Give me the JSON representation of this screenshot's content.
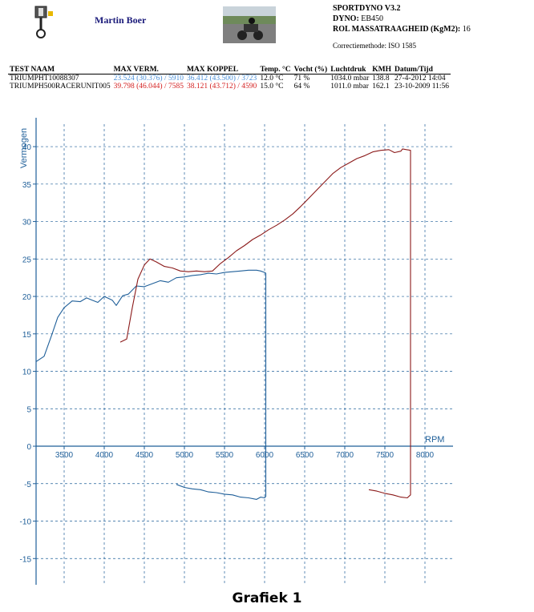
{
  "header": {
    "author": "Martin Boer",
    "software": "SPORTDYNO V3.2",
    "dyno_label": "DYNO:",
    "dyno_value": "EB450",
    "inertia_label": "ROL MASSATRAAGHEID (KgM2):",
    "inertia_value": "16",
    "correction": "Correctiemethode: ISO 1585",
    "logo_icon": "piston-icon",
    "photo_icon": "motorcycle-photo"
  },
  "table": {
    "columns": [
      "TEST NAAM",
      "MAX VERM.",
      "MAX KOPPEL",
      "Temp. °C",
      "Vocht (%)",
      "Luchtdruk",
      "KMH",
      "Datum/Tijd"
    ],
    "rows": [
      {
        "name": "TRIUMPHT10088307",
        "power": "23.524 (30.376) / 5910",
        "torque": "36.412 (43.500) / 3723",
        "temp": "12.0 °C",
        "humidity": "71 %",
        "pressure": "1034.0 mbar",
        "kmh": "138.8",
        "datetime": "27-4-2012 14:04",
        "color": "#4a90d9"
      },
      {
        "name": "TRIUMPH500RACERUNIT005",
        "power": "39.798 (46.044) / 7585",
        "torque": "38.121 (43.712) / 4590",
        "temp": "15.0 °C",
        "humidity": "64 %",
        "pressure": "1011.0 mbar",
        "kmh": "162.1",
        "datetime": "23-10-2009 11:56",
        "color": "#d42020"
      }
    ]
  },
  "caption": "Grafiek 1",
  "chart_data": {
    "type": "line",
    "ylabel": "Vermogen",
    "xlabel": "RPM",
    "xlim": [
      3150,
      8350
    ],
    "ylim": [
      -18.5,
      43
    ],
    "x_ticks": [
      3500,
      4000,
      4500,
      5000,
      5500,
      6000,
      6500,
      7000,
      7500,
      8000
    ],
    "y_ticks": [
      -15,
      -10,
      -5,
      0,
      5,
      10,
      15,
      20,
      25,
      30,
      35,
      40
    ],
    "grid": true,
    "series": [
      {
        "color": "#1f5f99",
        "segments": [
          [
            [
              3150,
              11.3
            ],
            [
              3250,
              12.0
            ],
            [
              3350,
              15.0
            ],
            [
              3420,
              17.2
            ],
            [
              3500,
              18.5
            ],
            [
              3600,
              19.4
            ],
            [
              3700,
              19.3
            ],
            [
              3780,
              19.8
            ],
            [
              3850,
              19.5
            ],
            [
              3920,
              19.2
            ],
            [
              4000,
              20.0
            ],
            [
              4100,
              19.5
            ],
            [
              4150,
              18.8
            ],
            [
              4230,
              20.1
            ],
            [
              4300,
              20.3
            ],
            [
              4400,
              21.4
            ],
            [
              4500,
              21.3
            ],
            [
              4600,
              21.7
            ],
            [
              4700,
              22.1
            ],
            [
              4800,
              21.9
            ],
            [
              4900,
              22.5
            ],
            [
              5000,
              22.6
            ],
            [
              5100,
              22.8
            ],
            [
              5200,
              22.9
            ],
            [
              5300,
              23.1
            ],
            [
              5400,
              23.0
            ],
            [
              5500,
              23.2
            ],
            [
              5600,
              23.3
            ],
            [
              5700,
              23.4
            ],
            [
              5800,
              23.5
            ],
            [
              5900,
              23.5
            ],
            [
              5950,
              23.4
            ],
            [
              6000,
              23.2
            ],
            [
              6015,
              23.1
            ],
            [
              6015,
              -6.7
            ],
            [
              6000,
              -6.9
            ],
            [
              5950,
              -6.8
            ],
            [
              5900,
              -7.1
            ],
            [
              5800,
              -6.9
            ],
            [
              5700,
              -6.8
            ],
            [
              5600,
              -6.5
            ],
            [
              5500,
              -6.4
            ],
            [
              5400,
              -6.2
            ],
            [
              5300,
              -6.1
            ],
            [
              5200,
              -5.8
            ],
            [
              5100,
              -5.7
            ],
            [
              5000,
              -5.5
            ],
            [
              4900,
              -5.1
            ]
          ]
        ]
      },
      {
        "color": "#8b1a1a",
        "segments": [
          [
            [
              4200,
              13.9
            ],
            [
              4280,
              14.3
            ],
            [
              4350,
              18.5
            ],
            [
              4420,
              22.3
            ],
            [
              4500,
              24.2
            ],
            [
              4570,
              25.0
            ],
            [
              4650,
              24.6
            ],
            [
              4750,
              24.0
            ],
            [
              4850,
              23.8
            ],
            [
              4950,
              23.4
            ],
            [
              5050,
              23.3
            ],
            [
              5150,
              23.4
            ],
            [
              5250,
              23.3
            ],
            [
              5350,
              23.4
            ],
            [
              5450,
              24.4
            ],
            [
              5550,
              25.2
            ],
            [
              5650,
              26.1
            ],
            [
              5750,
              26.8
            ],
            [
              5850,
              27.6
            ],
            [
              5950,
              28.2
            ],
            [
              6050,
              28.9
            ],
            [
              6150,
              29.5
            ],
            [
              6250,
              30.2
            ],
            [
              6350,
              31.0
            ],
            [
              6450,
              32.0
            ],
            [
              6550,
              33.1
            ],
            [
              6650,
              34.2
            ],
            [
              6750,
              35.3
            ],
            [
              6850,
              36.4
            ],
            [
              6950,
              37.2
            ],
            [
              7050,
              37.8
            ],
            [
              7150,
              38.4
            ],
            [
              7250,
              38.8
            ],
            [
              7350,
              39.3
            ],
            [
              7450,
              39.5
            ],
            [
              7550,
              39.6
            ],
            [
              7620,
              39.2
            ],
            [
              7700,
              39.4
            ],
            [
              7720,
              39.7
            ],
            [
              7820,
              39.5
            ],
            [
              7820,
              -6.5
            ],
            [
              7780,
              -6.9
            ],
            [
              7700,
              -6.8
            ],
            [
              7600,
              -6.5
            ],
            [
              7500,
              -6.3
            ],
            [
              7400,
              -6.0
            ],
            [
              7300,
              -5.8
            ]
          ]
        ]
      }
    ]
  }
}
